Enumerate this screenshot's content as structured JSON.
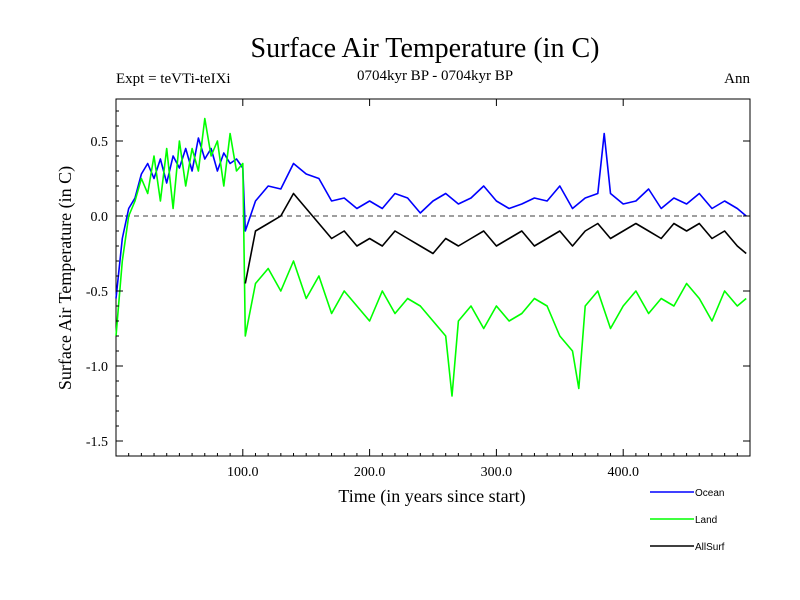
{
  "chart_data": {
    "type": "line",
    "title": "Surface Air Temperature (in C)",
    "subtitle": "0704kyr BP - 0704kyr BP",
    "left_label": "Expt = teVTi-teIXi",
    "right_label": "Ann",
    "xlabel": "Time (in years since start)",
    "ylabel": "Surface Air Temperature (in C)",
    "xlim": [
      0,
      500
    ],
    "ylim": [
      -1.6,
      0.78
    ],
    "x_ticks": [
      100,
      200,
      300,
      400
    ],
    "x_tick_labels": [
      "100.0",
      "200.0",
      "300.0",
      "400.0"
    ],
    "y_ticks": [
      -1.5,
      -1.0,
      -0.5,
      0.0,
      0.5
    ],
    "y_tick_labels": [
      "-1.5",
      "-1.0",
      "-0.5",
      "0.0",
      "0.5"
    ],
    "zero_line": "dashed",
    "grid": false,
    "legend_position": "bottom-right",
    "series": [
      {
        "name": "Ocean",
        "color": "#0000ff",
        "points": [
          [
            0,
            -0.55
          ],
          [
            5,
            -0.15
          ],
          [
            10,
            0.05
          ],
          [
            15,
            0.12
          ],
          [
            20,
            0.28
          ],
          [
            25,
            0.35
          ],
          [
            30,
            0.25
          ],
          [
            35,
            0.38
          ],
          [
            40,
            0.22
          ],
          [
            45,
            0.4
          ],
          [
            50,
            0.32
          ],
          [
            55,
            0.45
          ],
          [
            60,
            0.3
          ],
          [
            65,
            0.52
          ],
          [
            70,
            0.38
          ],
          [
            75,
            0.45
          ],
          [
            80,
            0.3
          ],
          [
            85,
            0.42
          ],
          [
            90,
            0.35
          ],
          [
            95,
            0.38
          ],
          [
            100,
            0.32
          ],
          [
            102,
            -0.1
          ],
          [
            110,
            0.1
          ],
          [
            120,
            0.2
          ],
          [
            130,
            0.18
          ],
          [
            140,
            0.35
          ],
          [
            150,
            0.28
          ],
          [
            160,
            0.25
          ],
          [
            170,
            0.1
          ],
          [
            180,
            0.12
          ],
          [
            190,
            0.05
          ],
          [
            200,
            0.1
          ],
          [
            210,
            0.05
          ],
          [
            220,
            0.15
          ],
          [
            230,
            0.12
          ],
          [
            240,
            0.02
          ],
          [
            250,
            0.1
          ],
          [
            260,
            0.15
          ],
          [
            270,
            0.08
          ],
          [
            280,
            0.12
          ],
          [
            290,
            0.2
          ],
          [
            300,
            0.1
          ],
          [
            310,
            0.05
          ],
          [
            320,
            0.08
          ],
          [
            330,
            0.12
          ],
          [
            340,
            0.1
          ],
          [
            350,
            0.2
          ],
          [
            360,
            0.05
          ],
          [
            370,
            0.12
          ],
          [
            380,
            0.15
          ],
          [
            385,
            0.55
          ],
          [
            390,
            0.15
          ],
          [
            400,
            0.08
          ],
          [
            410,
            0.1
          ],
          [
            420,
            0.18
          ],
          [
            430,
            0.05
          ],
          [
            440,
            0.12
          ],
          [
            450,
            0.08
          ],
          [
            460,
            0.15
          ],
          [
            470,
            0.05
          ],
          [
            480,
            0.1
          ],
          [
            490,
            0.05
          ],
          [
            497,
            0.0
          ]
        ]
      },
      {
        "name": "Land",
        "color": "#00ff00",
        "points": [
          [
            0,
            -0.8
          ],
          [
            5,
            -0.3
          ],
          [
            10,
            0.0
          ],
          [
            15,
            0.1
          ],
          [
            20,
            0.25
          ],
          [
            25,
            0.15
          ],
          [
            30,
            0.4
          ],
          [
            35,
            0.1
          ],
          [
            40,
            0.45
          ],
          [
            45,
            0.05
          ],
          [
            50,
            0.5
          ],
          [
            55,
            0.2
          ],
          [
            60,
            0.45
          ],
          [
            65,
            0.3
          ],
          [
            70,
            0.65
          ],
          [
            75,
            0.4
          ],
          [
            80,
            0.5
          ],
          [
            85,
            0.2
          ],
          [
            90,
            0.55
          ],
          [
            95,
            0.3
          ],
          [
            100,
            0.35
          ],
          [
            102,
            -0.8
          ],
          [
            110,
            -0.45
          ],
          [
            120,
            -0.35
          ],
          [
            130,
            -0.5
          ],
          [
            140,
            -0.3
          ],
          [
            150,
            -0.55
          ],
          [
            160,
            -0.4
          ],
          [
            170,
            -0.65
          ],
          [
            180,
            -0.5
          ],
          [
            190,
            -0.6
          ],
          [
            200,
            -0.7
          ],
          [
            210,
            -0.5
          ],
          [
            220,
            -0.65
          ],
          [
            230,
            -0.55
          ],
          [
            240,
            -0.6
          ],
          [
            250,
            -0.7
          ],
          [
            260,
            -0.8
          ],
          [
            265,
            -1.2
          ],
          [
            270,
            -0.7
          ],
          [
            280,
            -0.6
          ],
          [
            290,
            -0.75
          ],
          [
            300,
            -0.6
          ],
          [
            310,
            -0.7
          ],
          [
            320,
            -0.65
          ],
          [
            330,
            -0.55
          ],
          [
            340,
            -0.6
          ],
          [
            350,
            -0.8
          ],
          [
            360,
            -0.9
          ],
          [
            365,
            -1.15
          ],
          [
            370,
            -0.6
          ],
          [
            380,
            -0.5
          ],
          [
            390,
            -0.75
          ],
          [
            400,
            -0.6
          ],
          [
            410,
            -0.5
          ],
          [
            420,
            -0.65
          ],
          [
            430,
            -0.55
          ],
          [
            440,
            -0.6
          ],
          [
            450,
            -0.45
          ],
          [
            460,
            -0.55
          ],
          [
            470,
            -0.7
          ],
          [
            480,
            -0.5
          ],
          [
            490,
            -0.6
          ],
          [
            497,
            -0.55
          ]
        ]
      },
      {
        "name": "AllSurf",
        "color": "#000000",
        "points": [
          [
            102,
            -0.45
          ],
          [
            110,
            -0.1
          ],
          [
            120,
            -0.05
          ],
          [
            130,
            0.0
          ],
          [
            140,
            0.15
          ],
          [
            150,
            0.05
          ],
          [
            160,
            -0.05
          ],
          [
            170,
            -0.15
          ],
          [
            180,
            -0.1
          ],
          [
            190,
            -0.2
          ],
          [
            200,
            -0.15
          ],
          [
            210,
            -0.2
          ],
          [
            220,
            -0.1
          ],
          [
            230,
            -0.15
          ],
          [
            240,
            -0.2
          ],
          [
            250,
            -0.25
          ],
          [
            260,
            -0.15
          ],
          [
            270,
            -0.2
          ],
          [
            280,
            -0.15
          ],
          [
            290,
            -0.1
          ],
          [
            300,
            -0.2
          ],
          [
            310,
            -0.15
          ],
          [
            320,
            -0.1
          ],
          [
            330,
            -0.2
          ],
          [
            340,
            -0.15
          ],
          [
            350,
            -0.1
          ],
          [
            360,
            -0.2
          ],
          [
            370,
            -0.1
          ],
          [
            380,
            -0.05
          ],
          [
            390,
            -0.15
          ],
          [
            400,
            -0.1
          ],
          [
            410,
            -0.05
          ],
          [
            420,
            -0.1
          ],
          [
            430,
            -0.15
          ],
          [
            440,
            -0.05
          ],
          [
            450,
            -0.1
          ],
          [
            460,
            -0.05
          ],
          [
            470,
            -0.15
          ],
          [
            480,
            -0.1
          ],
          [
            490,
            -0.2
          ],
          [
            497,
            -0.25
          ]
        ]
      }
    ]
  }
}
